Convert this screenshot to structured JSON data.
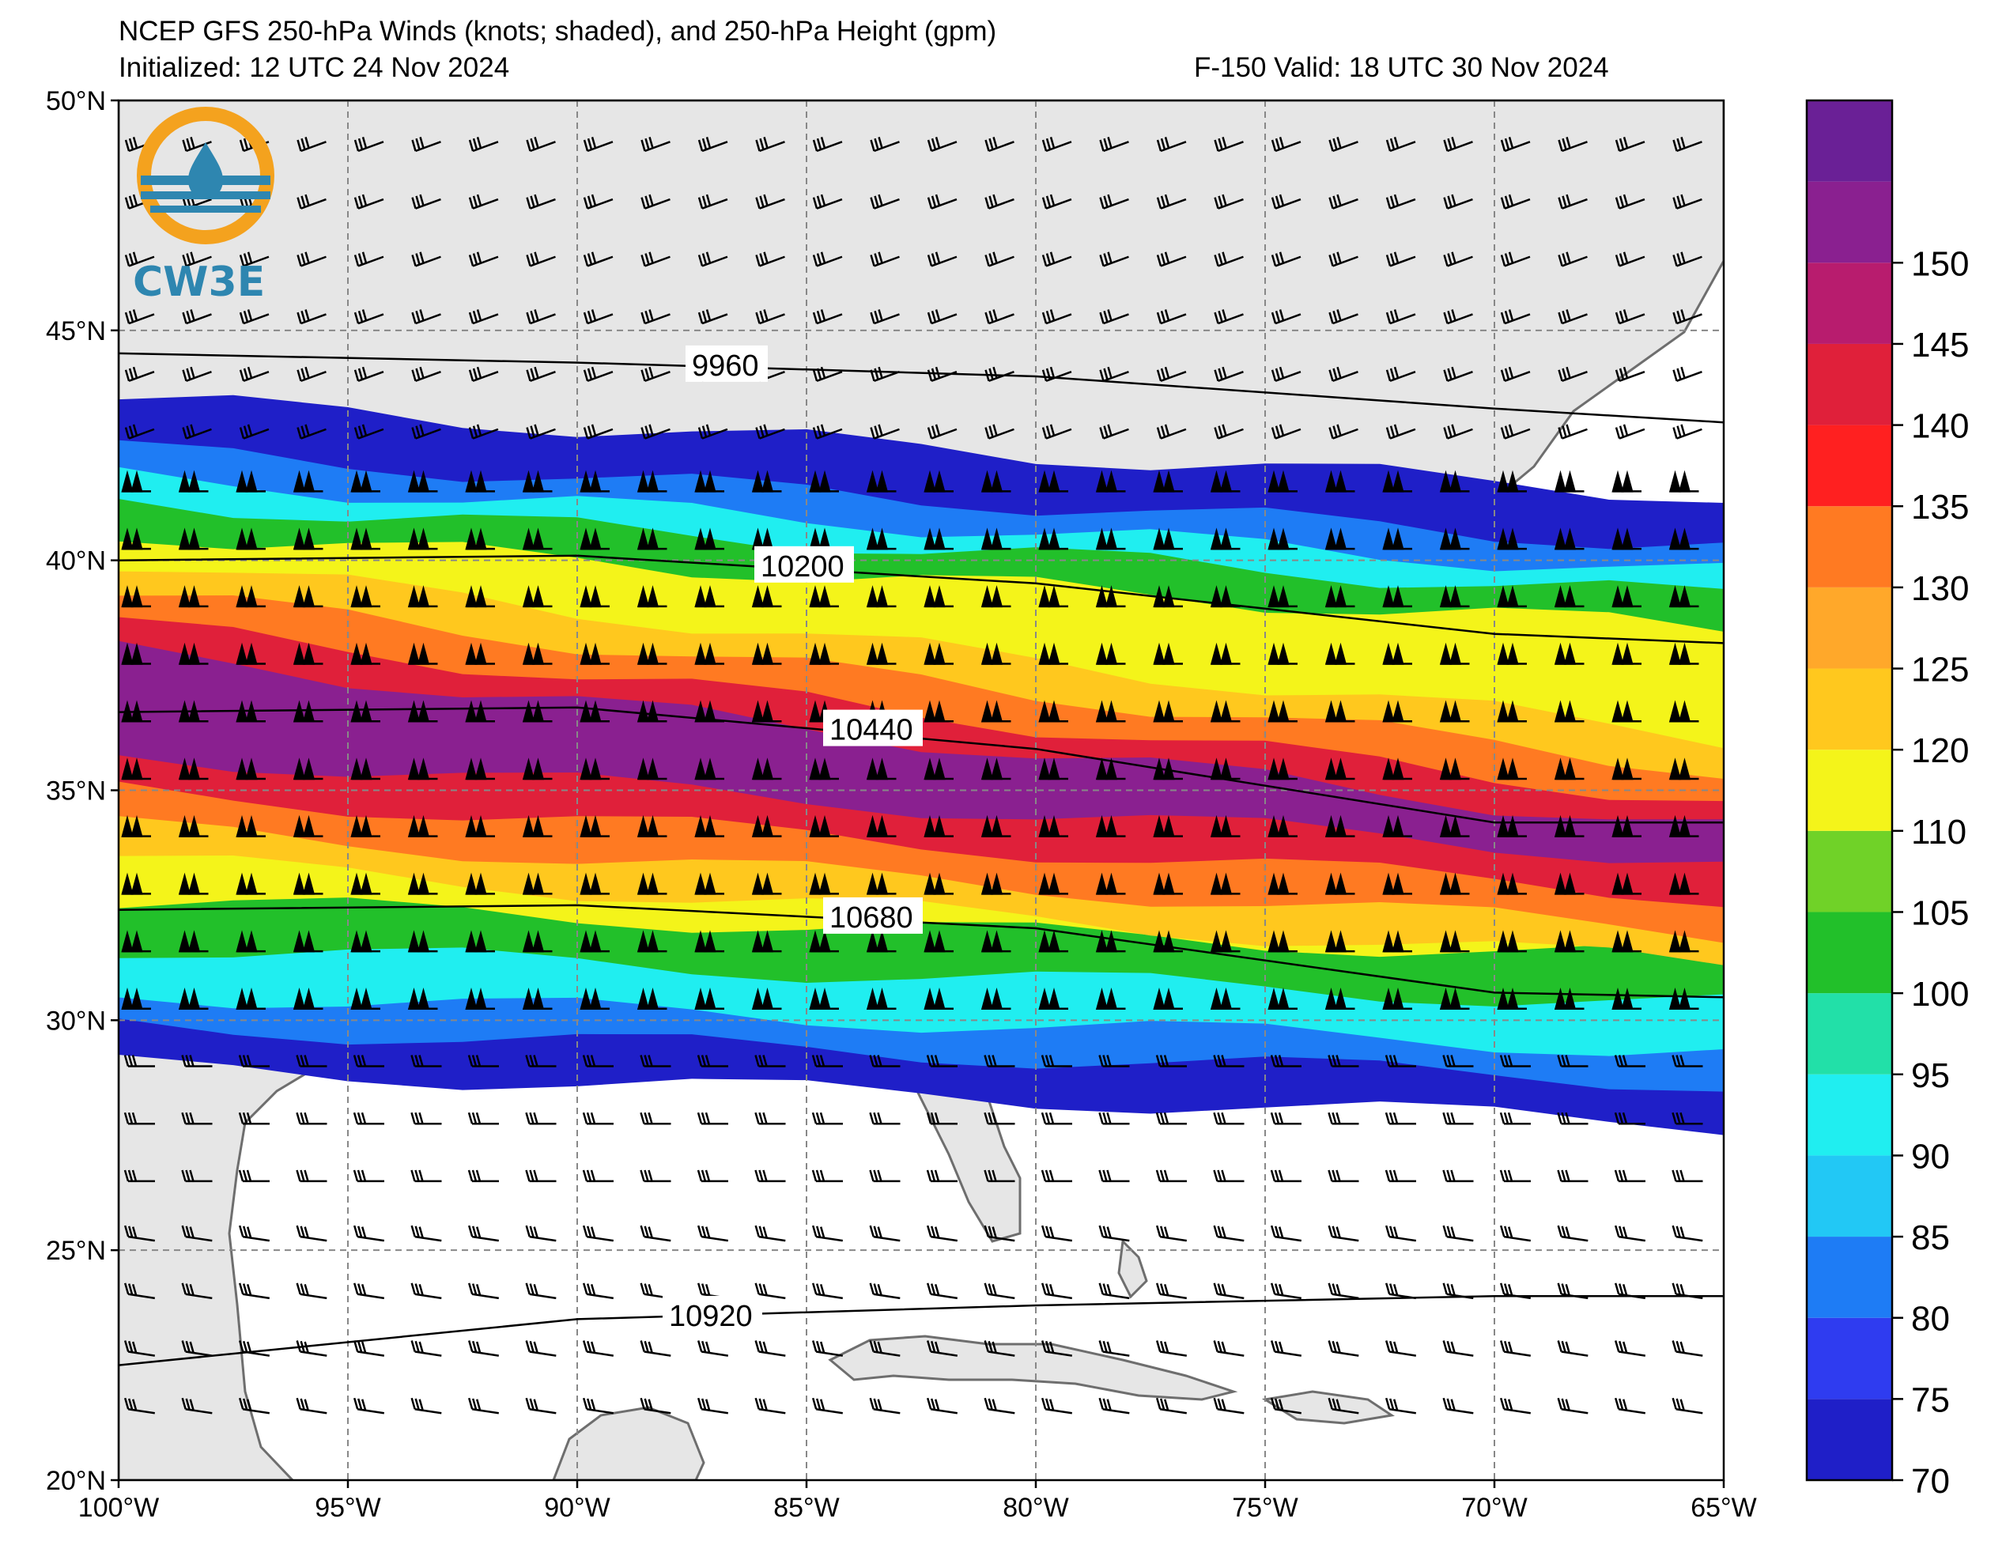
{
  "title": {
    "line1": "NCEP GFS 250-hPa Winds (knots; shaded), and 250-hPa Height (gpm)",
    "line2": "Initialized: 12 UTC 24 Nov 2024",
    "line3": "F-150  Valid: 18 UTC 30 Nov 2024"
  },
  "logo": {
    "text": "CW3E"
  },
  "map_extent": {
    "lon_min": -100,
    "lon_max": -65,
    "lat_min": 20,
    "lat_max": 50
  },
  "axes": {
    "lat_ticks": [
      {
        "value": 50,
        "label": "50°N"
      },
      {
        "value": 45,
        "label": "45°N"
      },
      {
        "value": 40,
        "label": "40°N"
      },
      {
        "value": 35,
        "label": "35°N"
      },
      {
        "value": 30,
        "label": "30°N"
      },
      {
        "value": 25,
        "label": "25°N"
      },
      {
        "value": 20,
        "label": "20°N"
      }
    ],
    "lon_ticks": [
      {
        "value": -100,
        "label": "100°W"
      },
      {
        "value": -95,
        "label": "95°W"
      },
      {
        "value": -90,
        "label": "90°W"
      },
      {
        "value": -85,
        "label": "85°W"
      },
      {
        "value": -80,
        "label": "80°W"
      },
      {
        "value": -75,
        "label": "75°W"
      },
      {
        "value": -70,
        "label": "70°W"
      },
      {
        "value": -65,
        "label": "65°W"
      }
    ],
    "grid": true
  },
  "colorbar": {
    "levels": [
      70,
      75,
      80,
      85,
      90,
      95,
      100,
      105,
      110,
      120,
      125,
      130,
      135,
      140,
      145,
      150,
      155
    ],
    "labels": [
      "70",
      "75",
      "80",
      "85",
      "90",
      "95",
      "100",
      "105",
      "110",
      "120",
      "125",
      "130",
      "135",
      "140",
      "145",
      "150"
    ],
    "colors": [
      "#1f1fc8",
      "#2f3cf0",
      "#1e7cf5",
      "#22c8f5",
      "#20eef0",
      "#22e0a8",
      "#22c02a",
      "#70d228",
      "#f4f41a",
      "#ffc81e",
      "#ffa82a",
      "#ff7a22",
      "#ff2020",
      "#e0203a",
      "#b81c6e",
      "#8a2090",
      "#6a2096"
    ]
  },
  "height_contours": [
    {
      "value": 9960,
      "label": "9960",
      "lat_at_lon": [
        [
          -100,
          44.5
        ],
        [
          -90,
          44.3
        ],
        [
          -80,
          44.0
        ],
        [
          -70,
          43.3
        ],
        [
          -65,
          43.0
        ]
      ],
      "label_lon": -87.5
    },
    {
      "value": 10200,
      "label": "10200",
      "lat_at_lon": [
        [
          -100,
          40.0
        ],
        [
          -90,
          40.1
        ],
        [
          -80,
          39.5
        ],
        [
          -70,
          38.4
        ],
        [
          -65,
          38.2
        ]
      ],
      "label_lon": -86.0
    },
    {
      "value": 10440,
      "label": "10440",
      "lat_at_lon": [
        [
          -100,
          36.7
        ],
        [
          -90,
          36.8
        ],
        [
          -80,
          35.9
        ],
        [
          -70,
          34.3
        ],
        [
          -65,
          34.3
        ]
      ],
      "label_lon": -84.5
    },
    {
      "value": 10680,
      "label": "10680",
      "lat_at_lon": [
        [
          -100,
          32.4
        ],
        [
          -90,
          32.5
        ],
        [
          -80,
          32.0
        ],
        [
          -70,
          30.6
        ],
        [
          -65,
          30.5
        ]
      ],
      "label_lon": -84.5
    },
    {
      "value": 10920,
      "label": "10920",
      "lat_at_lon": [
        [
          -100,
          22.5
        ],
        [
          -90,
          23.5
        ],
        [
          -80,
          23.8
        ],
        [
          -70,
          24.0
        ],
        [
          -65,
          24.0
        ]
      ],
      "label_lon": -88.0
    }
  ],
  "jet_core": {
    "description_values_knots": "max ~150-155 kt near 36-38N west of 88W",
    "bands": [
      {
        "speed": 70,
        "north_lat": 43.5,
        "south_lat": 29.0
      },
      {
        "speed": 80,
        "north_lat": 42.4,
        "south_lat": 29.9
      },
      {
        "speed": 90,
        "north_lat": 41.8,
        "south_lat": 30.6
      },
      {
        "speed": 100,
        "north_lat": 41.3,
        "south_lat": 31.6
      },
      {
        "speed": 110,
        "north_lat": 40.6,
        "south_lat": 32.6
      },
      {
        "speed": 120,
        "north_lat": 40.0,
        "south_lat": 33.5
      },
      {
        "speed": 130,
        "north_lat": 39.3,
        "south_lat": 34.2
      },
      {
        "speed": 140,
        "north_lat": 38.6,
        "south_lat": 35.0
      },
      {
        "speed": 150,
        "north_lat": 38.0,
        "south_lat": 35.8
      }
    ]
  }
}
